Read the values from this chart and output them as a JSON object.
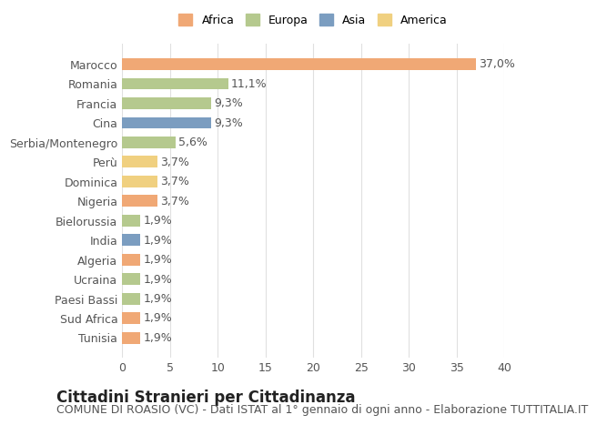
{
  "categories": [
    "Tunisia",
    "Sud Africa",
    "Paesi Bassi",
    "Ucraina",
    "Algeria",
    "India",
    "Bielorussia",
    "Nigeria",
    "Dominica",
    "Perù",
    "Serbia/Montenegro",
    "Cina",
    "Francia",
    "Romania",
    "Marocco"
  ],
  "values": [
    1.9,
    1.9,
    1.9,
    1.9,
    1.9,
    1.9,
    1.9,
    3.7,
    3.7,
    3.7,
    5.6,
    9.3,
    9.3,
    11.1,
    37.0
  ],
  "labels": [
    "1,9%",
    "1,9%",
    "1,9%",
    "1,9%",
    "1,9%",
    "1,9%",
    "1,9%",
    "3,7%",
    "3,7%",
    "3,7%",
    "5,6%",
    "9,3%",
    "9,3%",
    "11,1%",
    "37,0%"
  ],
  "continents": [
    "Africa",
    "Africa",
    "Europa",
    "Europa",
    "Africa",
    "Asia",
    "Europa",
    "Africa",
    "America",
    "America",
    "Europa",
    "Asia",
    "Europa",
    "Europa",
    "Africa"
  ],
  "continent_colors": {
    "Africa": "#F0A875",
    "Europa": "#B5C98E",
    "Asia": "#7B9DC0",
    "America": "#F0D080"
  },
  "legend_order": [
    "Africa",
    "Europa",
    "Asia",
    "America"
  ],
  "xlim": [
    0,
    40
  ],
  "xticks": [
    0,
    5,
    10,
    15,
    20,
    25,
    30,
    35,
    40
  ],
  "title": "Cittadini Stranieri per Cittadinanza",
  "subtitle": "COMUNE DI ROASIO (VC) - Dati ISTAT al 1° gennaio di ogni anno - Elaborazione TUTTITALIA.IT",
  "background_color": "#ffffff",
  "grid_color": "#e0e0e0",
  "bar_height": 0.6,
  "label_fontsize": 9,
  "tick_fontsize": 9,
  "title_fontsize": 12,
  "subtitle_fontsize": 9
}
